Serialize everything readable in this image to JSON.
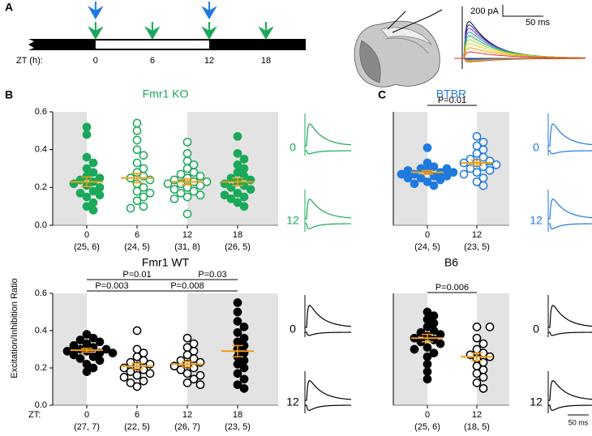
{
  "panel_labels": [
    "A",
    "B",
    "C"
  ],
  "timeline": {
    "label": "ZT (h):",
    "xlim": [
      -7.1,
      22.2
    ],
    "xticks": [
      0,
      6,
      12,
      18
    ],
    "light": [
      0,
      12
    ],
    "blue_arrows": [
      0,
      12
    ],
    "green_arrows": [
      0,
      6,
      12,
      18
    ]
  },
  "panel_a_scale": {
    "current": "200 pA",
    "time": "50 ms"
  },
  "y_label": "Excitation/Inhibition Ratio",
  "chart_data": [
    {
      "type": "dot",
      "title": "Fmr1 KO",
      "title_color": "#1aa85a",
      "color": "#1aa85a",
      "categories": [
        "0",
        "6",
        "12",
        "18"
      ],
      "n_labels": [
        "(25, 6)",
        "(24, 5)",
        "(31, 8)",
        "(26, 5)"
      ],
      "filled": [
        true,
        false,
        false,
        true
      ],
      "values": [
        [
          0.52,
          0.48,
          0.36,
          0.33,
          0.3,
          0.28,
          0.26,
          0.25,
          0.24,
          0.23,
          0.22,
          0.21,
          0.2,
          0.18,
          0.17,
          0.16,
          0.15,
          0.12,
          0.1,
          0.08
        ],
        [
          0.54,
          0.5,
          0.45,
          0.4,
          0.37,
          0.33,
          0.3,
          0.28,
          0.26,
          0.25,
          0.24,
          0.22,
          0.2,
          0.18,
          0.17,
          0.15,
          0.13,
          0.1,
          0.09
        ],
        [
          0.44,
          0.38,
          0.34,
          0.32,
          0.3,
          0.28,
          0.27,
          0.26,
          0.25,
          0.24,
          0.23,
          0.23,
          0.22,
          0.22,
          0.21,
          0.2,
          0.19,
          0.18,
          0.17,
          0.16,
          0.15,
          0.14,
          0.06
        ],
        [
          0.47,
          0.38,
          0.35,
          0.32,
          0.3,
          0.28,
          0.26,
          0.25,
          0.24,
          0.23,
          0.22,
          0.21,
          0.2,
          0.19,
          0.17,
          0.16,
          0.15,
          0.14,
          0.12,
          0.1
        ]
      ],
      "means": [
        0.23,
        0.25,
        0.23,
        0.23
      ],
      "sem": [
        0.025,
        0.025,
        0.015,
        0.02
      ],
      "ylim": [
        0,
        0.6
      ],
      "yticks": [
        {
          "value": 0,
          "label": "0.0"
        },
        0.2,
        0.4,
        0.6
      ],
      "trace_labels": [
        "0",
        "12"
      ]
    },
    {
      "type": "dot",
      "title": "Fmr1 WT",
      "title_color": "#000000",
      "color": "#000000",
      "x_label": "ZT:",
      "categories": [
        "0",
        "6",
        "12",
        "18"
      ],
      "n_labels": [
        "(27, 7)",
        "(22, 5)",
        "(26, 7)",
        "(23, 5)"
      ],
      "filled": [
        true,
        false,
        false,
        true
      ],
      "values": [
        [
          0.38,
          0.36,
          0.35,
          0.34,
          0.33,
          0.32,
          0.31,
          0.3,
          0.3,
          0.29,
          0.29,
          0.28,
          0.28,
          0.27,
          0.26,
          0.25,
          0.24,
          0.22,
          0.2,
          0.18
        ],
        [
          0.4,
          0.3,
          0.28,
          0.26,
          0.24,
          0.23,
          0.22,
          0.21,
          0.2,
          0.19,
          0.18,
          0.17,
          0.16,
          0.15,
          0.13,
          0.12,
          0.1
        ],
        [
          0.36,
          0.33,
          0.31,
          0.29,
          0.27,
          0.25,
          0.24,
          0.23,
          0.22,
          0.21,
          0.2,
          0.19,
          0.17,
          0.16,
          0.14,
          0.12,
          0.11
        ],
        [
          0.55,
          0.5,
          0.45,
          0.42,
          0.39,
          0.36,
          0.34,
          0.32,
          0.3,
          0.28,
          0.26,
          0.24,
          0.22,
          0.2,
          0.17,
          0.14,
          0.11,
          0.09
        ]
      ],
      "means": [
        0.295,
        0.21,
        0.22,
        0.29
      ],
      "sem": [
        0.01,
        0.015,
        0.015,
        0.03
      ],
      "ylim": [
        0,
        0.6
      ],
      "yticks": [
        {
          "value": 0,
          "label": "0.0"
        },
        0.2,
        0.4,
        0.6
      ],
      "comparisons": [
        {
          "groups": [
            "0",
            "12"
          ],
          "label": "P=0.01"
        },
        {
          "groups": [
            "0",
            "6"
          ],
          "label": "P=0.003"
        },
        {
          "groups": [
            "6",
            "18"
          ],
          "label": "P=0.008"
        },
        {
          "groups": [
            "12",
            "18"
          ],
          "label": "P=0.03"
        }
      ],
      "trace_labels": [
        "0",
        "12"
      ]
    },
    {
      "type": "dot",
      "title": "BTBR",
      "title_color": "#1f7ae0",
      "color": "#1f7ae0",
      "categories": [
        "0",
        "12"
      ],
      "n_labels": [
        "(24, 5)",
        "(23, 5)"
      ],
      "filled": [
        true,
        false
      ],
      "values": [
        [
          0.41,
          0.33,
          0.31,
          0.3,
          0.3,
          0.29,
          0.29,
          0.28,
          0.28,
          0.27,
          0.27,
          0.26,
          0.26,
          0.25,
          0.25,
          0.24,
          0.23,
          0.22,
          0.21
        ],
        [
          0.47,
          0.44,
          0.42,
          0.4,
          0.38,
          0.36,
          0.35,
          0.34,
          0.33,
          0.33,
          0.32,
          0.31,
          0.3,
          0.29,
          0.28,
          0.27,
          0.25,
          0.23,
          0.21
        ]
      ],
      "means": [
        0.28,
        0.33
      ],
      "sem": [
        0.01,
        0.015
      ],
      "ylim": [
        0,
        0.6
      ],
      "comparisons": [
        {
          "groups": [
            "0",
            "12"
          ],
          "label": "P=0.01"
        }
      ],
      "trace_labels": [
        "0",
        "12"
      ]
    },
    {
      "type": "dot",
      "title": "B6",
      "title_color": "#000000",
      "color": "#000000",
      "categories": [
        "0",
        "12"
      ],
      "n_labels": [
        "(25, 6)",
        "(18, 5)"
      ],
      "filled": [
        true,
        false
      ],
      "values": [
        [
          0.5,
          0.48,
          0.46,
          0.44,
          0.42,
          0.4,
          0.39,
          0.38,
          0.37,
          0.36,
          0.35,
          0.34,
          0.33,
          0.31,
          0.3,
          0.28,
          0.26,
          0.22,
          0.18,
          0.14
        ],
        [
          0.42,
          0.42,
          0.36,
          0.33,
          0.3,
          0.28,
          0.27,
          0.26,
          0.25,
          0.23,
          0.21,
          0.19,
          0.17,
          0.15,
          0.12,
          0.09
        ]
      ],
      "means": [
        0.36,
        0.26
      ],
      "sem": [
        0.02,
        0.02
      ],
      "ylim": [
        0,
        0.6
      ],
      "comparisons": [
        {
          "groups": [
            "0",
            "12"
          ],
          "label": "P=0.006"
        }
      ],
      "trace_labels": [
        "0",
        "12"
      ],
      "trace_scale": "50 ms"
    }
  ]
}
